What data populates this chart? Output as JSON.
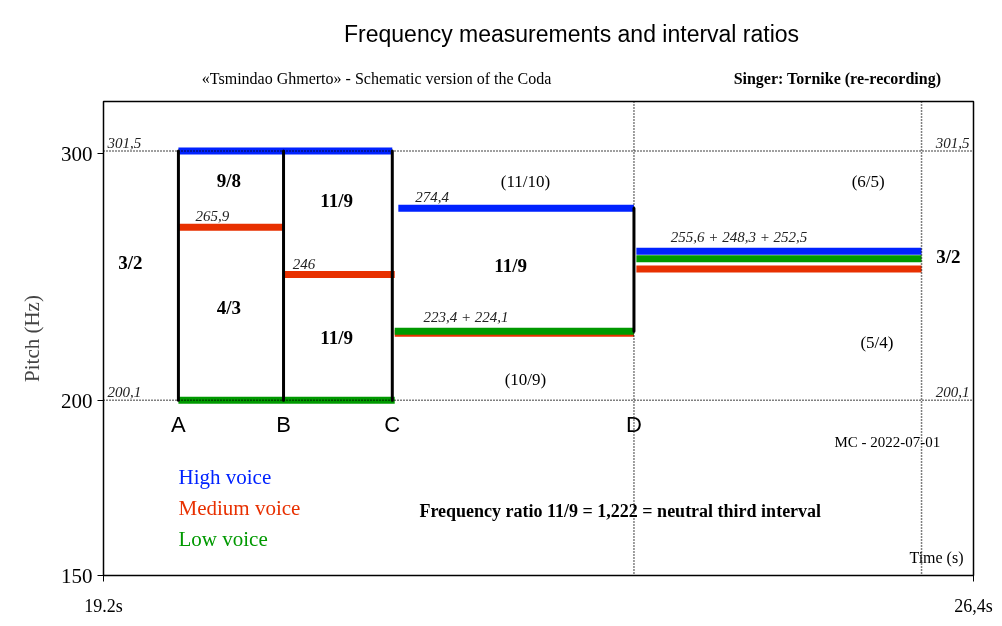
{
  "chart_data": {
    "type": "line",
    "title": "Frequency measurements and interval ratios",
    "subtitle": "«Tsmindao Ghmerto» - Schematic version of the Coda",
    "xlabel": "Time (s)",
    "ylabel": "Pitch (Hz)",
    "xlim": [
      19.2,
      26.4
    ],
    "xticks": [
      {
        "value": 19.2,
        "label": "19.2s"
      },
      {
        "value": 26.4,
        "label": "26,4s"
      }
    ],
    "ylim": [
      150,
      327
    ],
    "yticks": [
      150,
      200,
      300
    ],
    "log": "y",
    "grid": false,
    "legend": "bottom left",
    "marker": "none",
    "series": [
      {
        "name": "High voice",
        "color": "#0022ff",
        "x": [
          19.82,
          21.59,
          null,
          21.64,
          23.59,
          null,
          23.61,
          25.97
        ],
        "values": [
          301.5,
          301.5,
          null,
          274.4,
          274.4,
          null,
          255.6,
          255.6
        ]
      },
      {
        "name": "Medium voice",
        "color": "#e83000",
        "x": [
          19.82,
          20.69,
          null,
          20.69,
          21.61,
          null,
          21.61,
          23.59,
          null,
          23.61,
          25.97
        ],
        "values": [
          265.9,
          265.9,
          null,
          246,
          246,
          null,
          223.4,
          223.4,
          null,
          248.3,
          248.3
        ]
      },
      {
        "name": "Low voice",
        "color": "#009900",
        "x": [
          19.82,
          21.61,
          null,
          21.61,
          23.59,
          null,
          23.61,
          25.97
        ],
        "values": [
          200.1,
          200.1,
          null,
          224.1,
          224.1,
          null,
          252.5,
          252.5
        ]
      },
      {
        "color": "#000000",
        "x": [
          19.82,
          19.82,
          null,
          20.69,
          20.69,
          null,
          21.59,
          21.59,
          null,
          23.59,
          23.59
        ],
        "values": [
          200.1,
          301.5,
          null,
          200.1,
          301.5,
          null,
          200.1,
          301.5,
          null,
          224.1,
          274.4
        ]
      }
    ],
    "ref_lines": [
      {
        "axis": "y",
        "value": 301.5,
        "label": "301,5",
        "color": "#000000",
        "line_style": "dotted"
      },
      {
        "axis": "y",
        "value": 200.1,
        "label": "200,1",
        "color": "#000000",
        "line_style": "dotted"
      },
      {
        "axis": "x",
        "value": 23.59,
        "color": "#000000",
        "line_style": "dotted"
      },
      {
        "axis": "x",
        "value": 25.97,
        "color": "#000000",
        "line_style": "dotted"
      }
    ],
    "annotations": [
      "9/8",
      "4/3",
      "3/2",
      "11/9",
      "11/9",
      "11/9",
      "3/2",
      "(11/10)",
      "(10/9)",
      "(6/5)",
      "(5/4)",
      "MC - 2022-07-01",
      "Frequency ratio 11/9 = 1,222 = neutral third interval",
      "Singer: Tornike (re-recording)",
      {
        "text": "265,9",
        "x": 20.1,
        "y": 265.9
      },
      {
        "text": "246",
        "x": 20.86,
        "y": 246
      },
      {
        "text": "274,4",
        "x": 21.92,
        "y": 274.4
      },
      {
        "text": "223,4 + 224,1",
        "x": 22.2,
        "y": 224.1
      },
      {
        "text": "255,6 + 248,3 + 252,5",
        "x": 24.46,
        "y": 255.6
      },
      {
        "text": "A",
        "x": 19.82,
        "y": 200.1
      },
      {
        "text": "B",
        "x": 20.69,
        "y": 200.1
      },
      {
        "text": "C",
        "x": 21.59,
        "y": 200.1
      },
      {
        "text": "D",
        "x": 23.59,
        "y": 200.1
      }
    ]
  }
}
